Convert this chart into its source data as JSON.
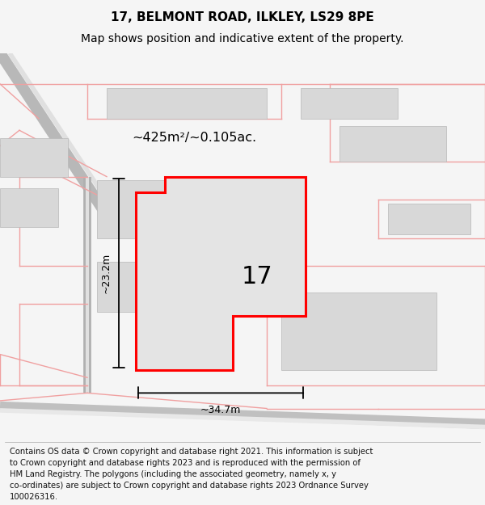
{
  "title": "17, BELMONT ROAD, ILKLEY, LS29 8PE",
  "subtitle": "Map shows position and indicative extent of the property.",
  "footer_lines": [
    "Contains OS data © Crown copyright and database right 2021. This information is subject",
    "to Crown copyright and database rights 2023 and is reproduced with the permission of",
    "HM Land Registry. The polygons (including the associated geometry, namely x, y",
    "co-ordinates) are subject to Crown copyright and database rights 2023 Ordnance Survey",
    "100026316."
  ],
  "bg_color": "#f5f5f5",
  "map_bg": "#ffffff",
  "area_label": "~425m²/~0.105ac.",
  "number_label": "17",
  "width_label": "~34.7m",
  "height_label": "~23.2m",
  "red_color": "#ff0000",
  "gray_building": "#d8d8d8",
  "pink_line": "#f0a0a0",
  "title_fontsize": 11,
  "subtitle_fontsize": 10,
  "footer_fontsize": 7.2
}
